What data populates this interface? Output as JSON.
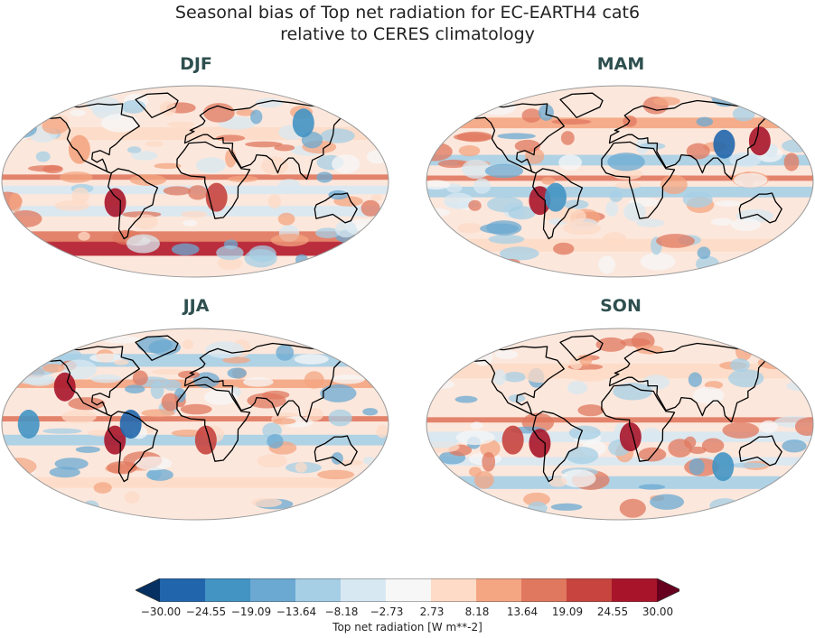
{
  "title_line1": "Seasonal bias of Top net radiation for EC-EARTH4 cat6",
  "title_line2": "relative to CERES climatology",
  "panels": [
    {
      "label": "DJF"
    },
    {
      "label": "MAM"
    },
    {
      "label": "JJA"
    },
    {
      "label": "SON"
    }
  ],
  "colorbar": {
    "label": "Top net radiation [W m**-2]",
    "ticks": [
      "−30.00",
      "−24.55",
      "−19.09",
      "−13.64",
      "−8.18",
      "−2.73",
      "2.73",
      "8.18",
      "13.64",
      "19.09",
      "24.55",
      "30.00"
    ],
    "colors": [
      "#053061",
      "#2166ac",
      "#4393c3",
      "#6ba9d2",
      "#a6cfe6",
      "#d8e8f2",
      "#f7f7f7",
      "#fddbc7",
      "#f4a582",
      "#e0785f",
      "#c7443f",
      "#a8152a",
      "#67001f"
    ]
  }
}
